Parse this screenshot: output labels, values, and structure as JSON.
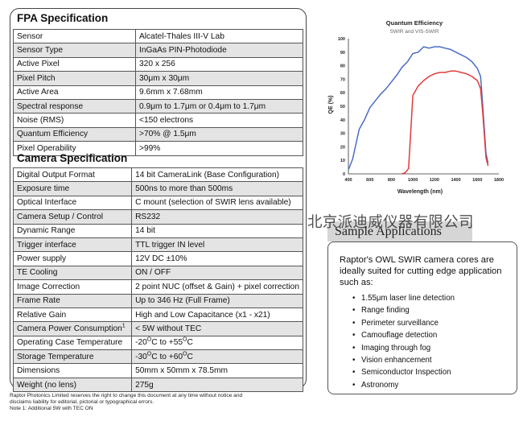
{
  "fpa": {
    "title": "FPA  Specification",
    "rows": [
      {
        "label": "Sensor",
        "value": "Alcatel-Thales III-V Lab"
      },
      {
        "label": "Sensor Type",
        "value": "InGaAs PIN-Photodiode"
      },
      {
        "label": "Active Pixel",
        "value": "320 x 256"
      },
      {
        "label": "Pixel Pitch",
        "value": "30μm x 30μm"
      },
      {
        "label": "Active Area",
        "value": "9.6mm x 7.68mm"
      },
      {
        "label": "Spectral response",
        "value": "0.9μm to 1.7μm or 0.4μm to 1.7μm"
      },
      {
        "label": "Noise (RMS)",
        "value": "<150 electrons"
      },
      {
        "label": "Quantum Efficiency",
        "value": ">70% @ 1.5μm"
      },
      {
        "label": "Pixel Operability",
        "value": ">99%"
      }
    ]
  },
  "camera": {
    "title": "Camera  Specification",
    "rows": [
      {
        "label": "Digital Output Format",
        "value": "14 bit CameraLink (Base Configuration)"
      },
      {
        "label": "Exposure time",
        "value": "500ns to more than 500ms"
      },
      {
        "label": "Optical Interface",
        "value": "C mount (selection of SWIR lens available)"
      },
      {
        "label": "Camera Setup / Control",
        "value": "RS232"
      },
      {
        "label": "Dynamic Range",
        "value": "14 bit"
      },
      {
        "label": "Trigger interface",
        "value": "TTL trigger IN level"
      },
      {
        "label": "Power supply",
        "value": "12V DC ±10%"
      },
      {
        "label": "TE Cooling",
        "value": "ON / OFF"
      },
      {
        "label": "Image Correction",
        "value": "2 point NUC (offset & Gain) + pixel correction"
      },
      {
        "label": "Frame Rate",
        "value": "Up to 346 Hz (Full Frame)"
      },
      {
        "label": "Relative Gain",
        "value": "High and Low Capacitance (x1 - x21)"
      },
      {
        "label": "Camera Power Consumption",
        "label_sup": "1",
        "value": "< 5W without TEC"
      },
      {
        "label": "Operating Case Temperature",
        "value": "-20",
        "value_sup": "O",
        "value_mid": "C to +55",
        "value_sup2": "O",
        "value_end": "C"
      },
      {
        "label": "Storage Temperature",
        "value": "-30",
        "value_sup": "O",
        "value_mid": "C to +60",
        "value_sup2": "O",
        "value_end": "C"
      },
      {
        "label": "Dimensions",
        "value": "50mm x 50mm x 78.5mm"
      },
      {
        "label": "Weight (no lens)",
        "value": "275g"
      }
    ]
  },
  "footer": {
    "line1": "Raptor Photonics Limited reserves the right to change this document at any time without notice and",
    "line2": "disclaims liability for editorial, pictorial or typographical errors.",
    "note": "Note 1:  Additional 5W with TEC ON"
  },
  "chart_data": {
    "type": "line",
    "title": "Quantum Efficiency",
    "subtitle": "SWIR and VIS-SWIR",
    "xlabel": "Wavelength (nm)",
    "ylabel": "QE (%)",
    "xlim": [
      400,
      1800
    ],
    "ylim": [
      0,
      100
    ],
    "xticks": [
      400,
      600,
      800,
      1000,
      1200,
      1400,
      1600,
      1800
    ],
    "yticks": [
      0,
      10,
      20,
      30,
      40,
      50,
      60,
      70,
      80,
      90,
      100
    ],
    "grid": false,
    "series": [
      {
        "color": "#4a6cc4",
        "x": [
          400,
          440,
          500,
          550,
          600,
          650,
          700,
          750,
          800,
          850,
          900,
          950,
          1000,
          1050,
          1100,
          1150,
          1200,
          1250,
          1300,
          1350,
          1400,
          1450,
          1500,
          1550,
          1600,
          1630,
          1650,
          1680,
          1700
        ],
        "y": [
          3,
          11,
          33,
          40,
          49,
          54,
          59,
          63,
          68,
          73,
          79,
          83,
          89,
          90,
          94,
          93,
          94,
          94,
          93,
          92,
          90,
          88,
          86,
          83,
          78,
          72,
          50,
          15,
          8
        ]
      },
      {
        "color": "#e03a3a",
        "x": [
          900,
          930,
          960,
          1000,
          1050,
          1100,
          1150,
          1200,
          1250,
          1300,
          1350,
          1400,
          1450,
          1500,
          1550,
          1600,
          1630,
          1650,
          1680,
          1700
        ],
        "y": [
          0,
          1,
          4,
          58,
          65,
          69,
          72,
          74,
          75,
          75,
          76,
          76,
          75,
          74,
          72,
          69,
          63,
          45,
          12,
          6
        ]
      }
    ]
  },
  "watermark": "北京派迪威仪器有限公司",
  "apps": {
    "title": "Sample Applications",
    "intro": "Raptor's OWL SWIR camera cores are ideally suited for cutting edge application such as:",
    "items": [
      "1.55μm laser line detection",
      "Range finding",
      "Perimeter surveillance",
      "Camouflage detection",
      "Imaging through fog",
      "Vision enhancement",
      "Semiconductor Inspection",
      "Astronomy"
    ]
  }
}
